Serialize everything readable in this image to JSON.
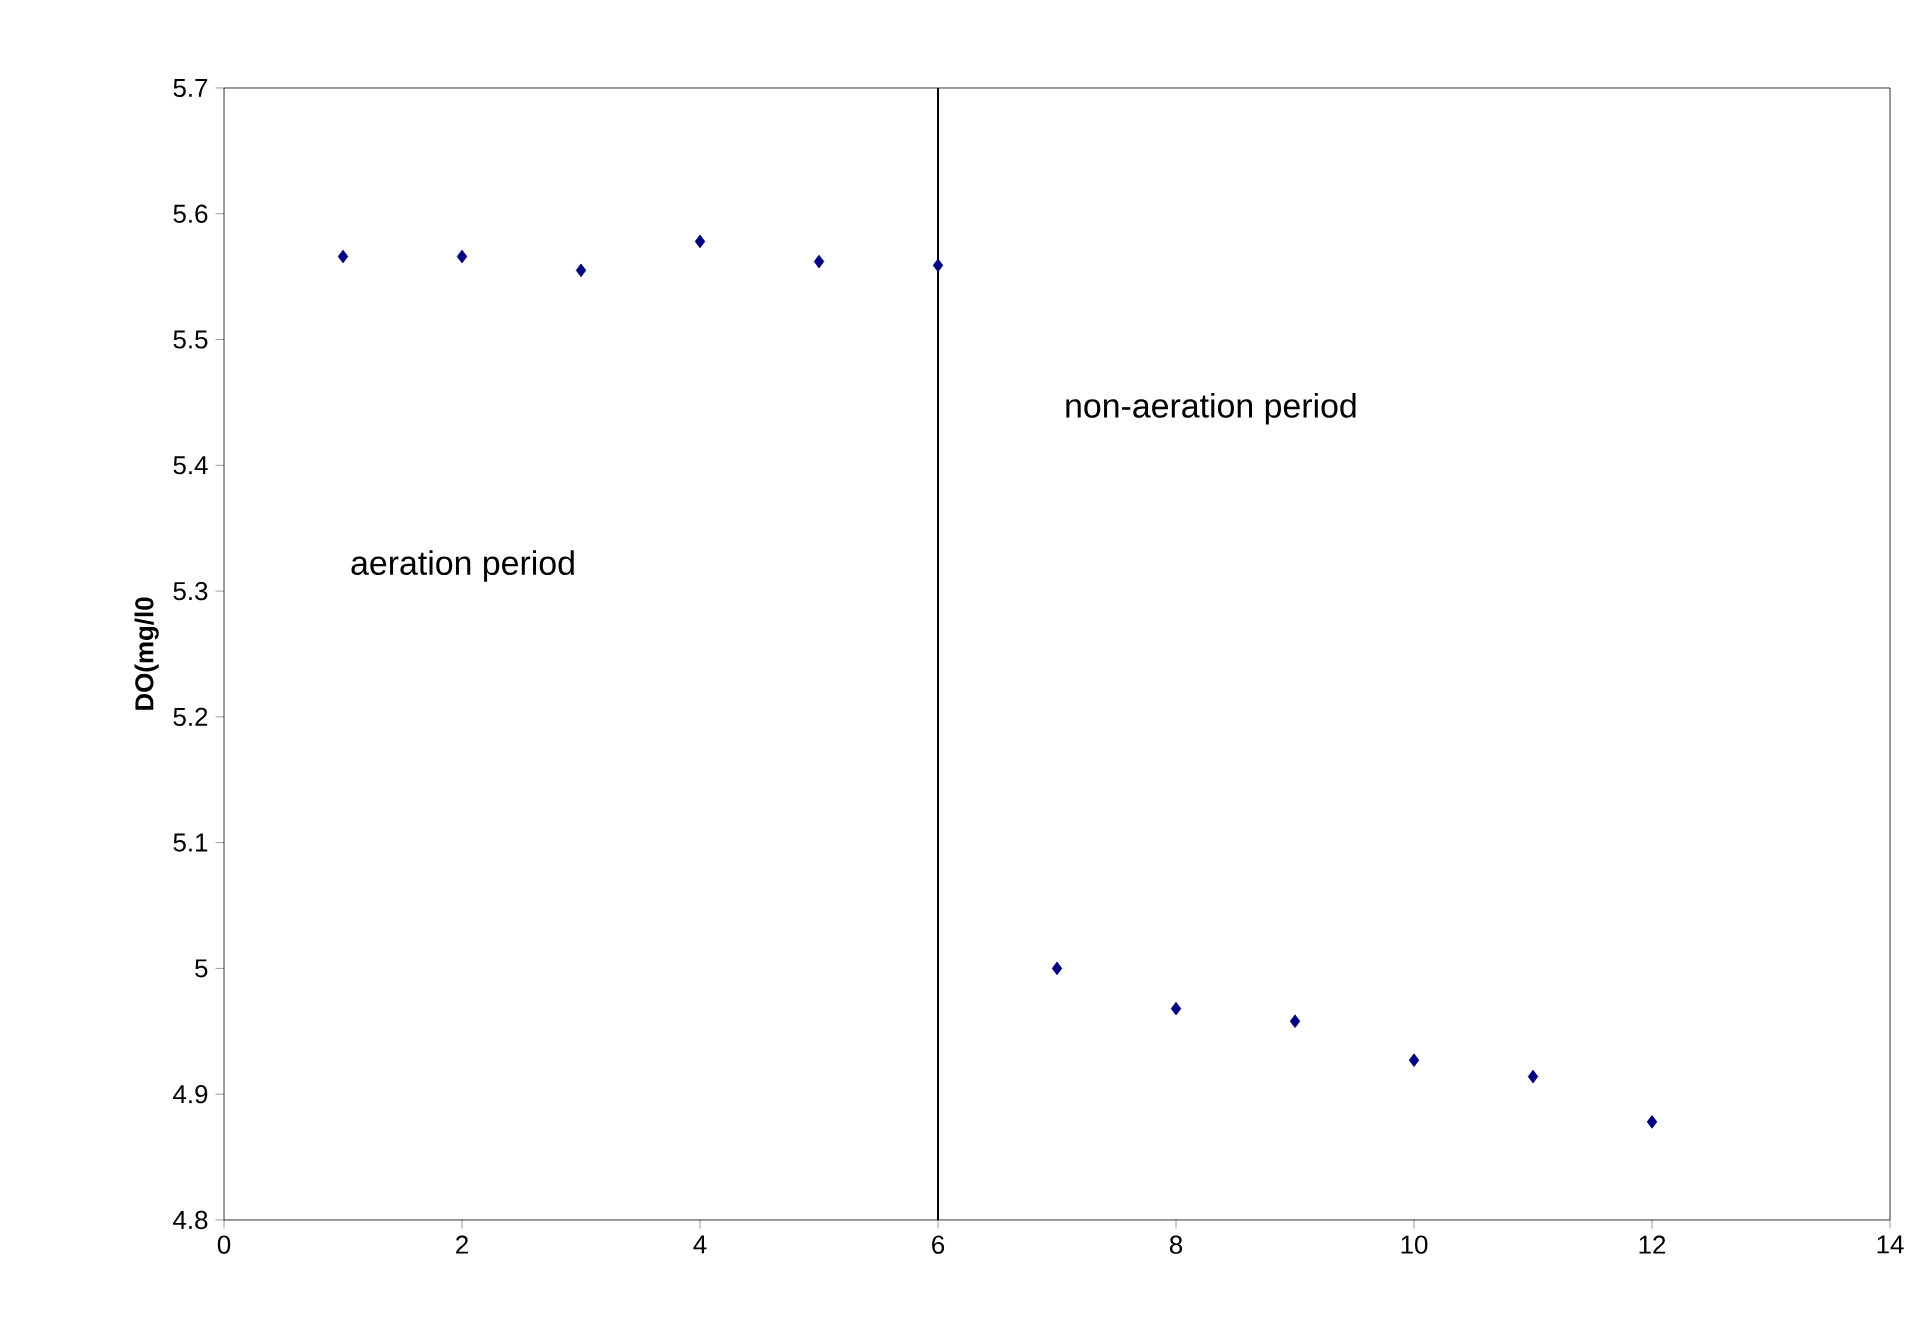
{
  "chart_data": {
    "type": "scatter",
    "ylabel": "DO(mg/l0",
    "x": [
      1,
      2,
      3,
      4,
      5,
      6,
      7,
      8,
      9,
      10,
      11,
      12
    ],
    "series": [
      {
        "color": "#000080",
        "values": [
          5.566,
          5.566,
          5.555,
          5.578,
          5.562,
          5.559,
          5.0,
          4.968,
          4.958,
          4.927,
          4.914,
          4.878
        ]
      }
    ],
    "ref_lines": [
      {
        "axis": "x",
        "value": 6,
        "color": "#000000"
      }
    ],
    "annotations": [
      "aeration period",
      "non-aeration period"
    ],
    "xlim": [
      0,
      14
    ],
    "xticks": [
      0,
      2,
      4,
      6,
      8,
      10,
      12,
      14
    ],
    "ylim": [
      4.8,
      5.7
    ],
    "yticks": [
      4.8,
      4.9,
      5,
      5.1,
      5.2,
      5.3,
      5.4,
      5.5,
      5.6,
      5.7
    ],
    "marker": "diamond",
    "grid": false
  }
}
